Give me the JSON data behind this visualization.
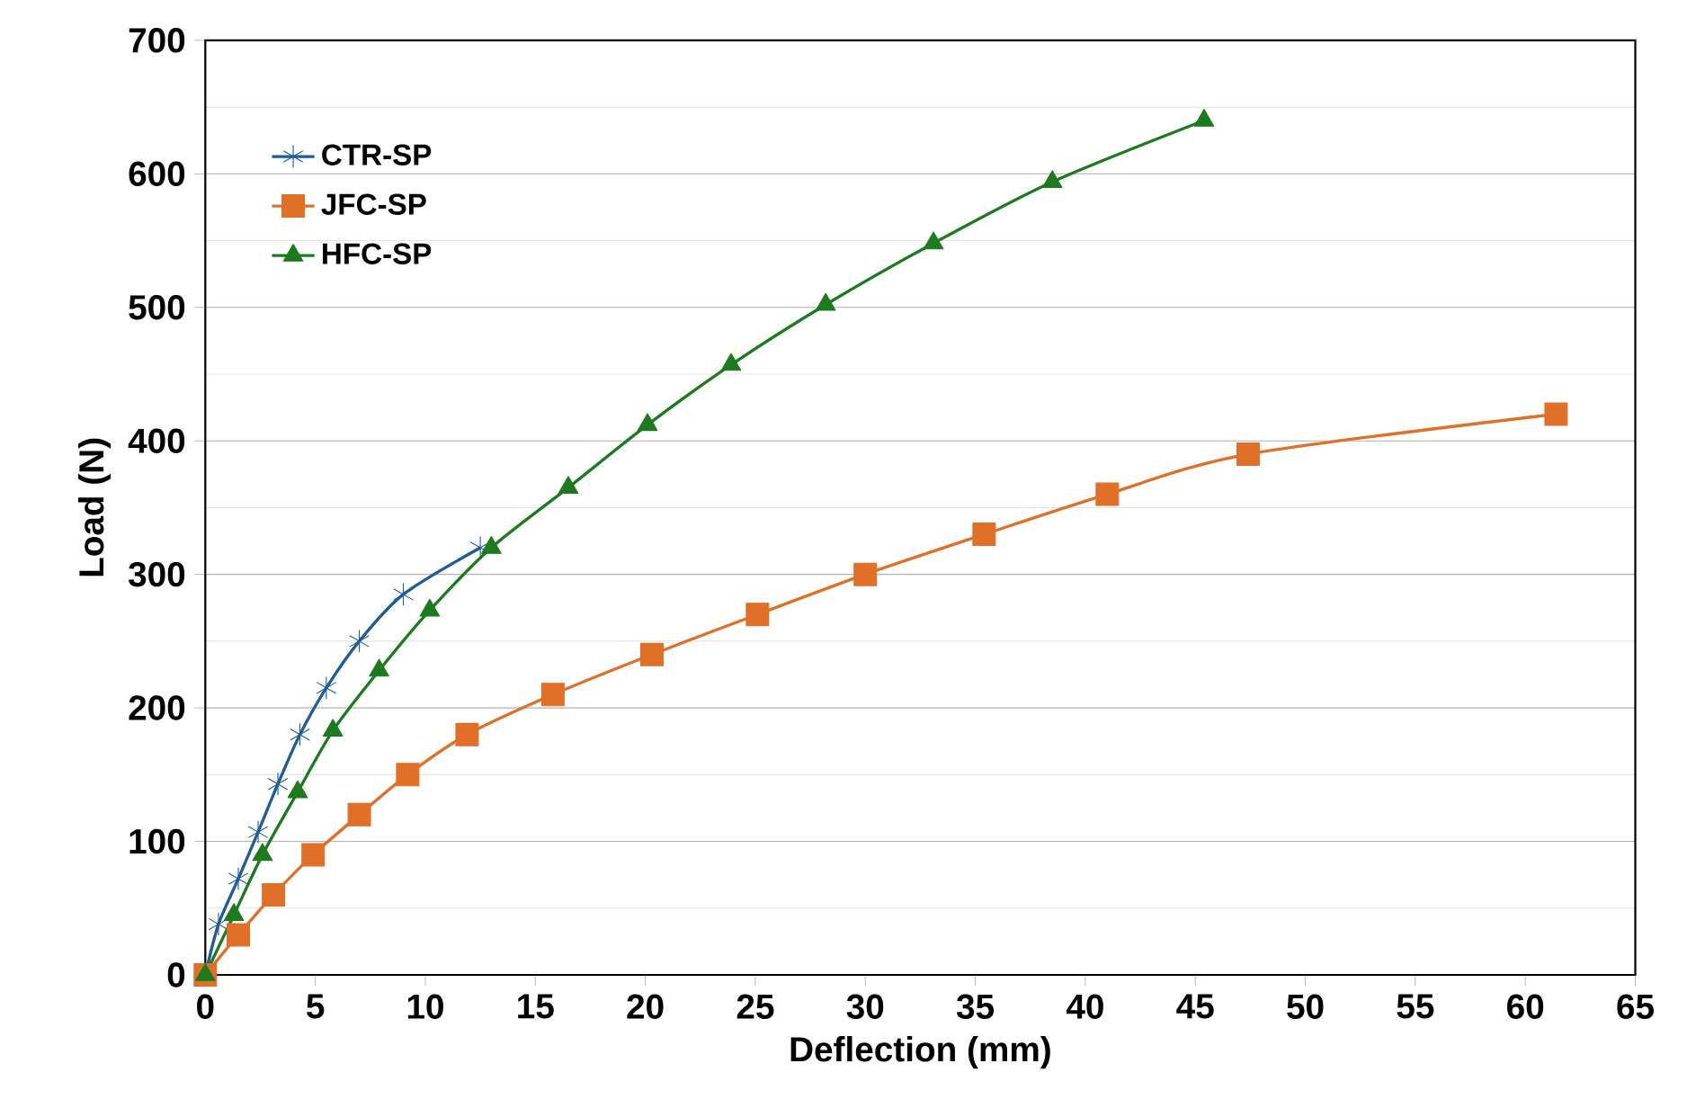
{
  "chart_data": {
    "type": "line",
    "xlabel": "Deflection (mm)",
    "ylabel": "Load (N)",
    "xlim": [
      0,
      65
    ],
    "ylim": [
      0,
      700
    ],
    "xticks": [
      0,
      5,
      10,
      15,
      20,
      25,
      30,
      35,
      40,
      45,
      50,
      55,
      60,
      65
    ],
    "yticks": [
      0,
      100,
      200,
      300,
      400,
      500,
      600,
      700
    ],
    "grid": "y",
    "legend": "top left",
    "line_style": "solid",
    "series": [
      {
        "name": "CTR-SP",
        "color": "#1f5c99",
        "marker": "cross",
        "x": [
          0,
          0.6,
          1.5,
          2.4,
          3.3,
          4.3,
          5.5,
          7,
          9,
          12.5
        ],
        "values": [
          0,
          38,
          72,
          107,
          143,
          180,
          215,
          250,
          285,
          320
        ]
      },
      {
        "name": "JFC-SP",
        "color": "#e07028",
        "marker": "square",
        "x": [
          0,
          1.5,
          3.1,
          4.9,
          7,
          9.2,
          11.9,
          15.8,
          20.3,
          25.1,
          30,
          35.4,
          41,
          47.4,
          61.4
        ],
        "values": [
          0,
          30,
          60,
          90,
          120,
          150,
          180,
          210,
          240,
          270,
          300,
          330,
          360,
          390,
          420
        ]
      },
      {
        "name": "HFC-SP",
        "color": "#1e7a1e",
        "marker": "triangle",
        "x": [
          0,
          1.3,
          2.6,
          4.2,
          5.8,
          7.9,
          10.2,
          13,
          16.5,
          20.1,
          23.9,
          28.2,
          33.1,
          38.5,
          45.4
        ],
        "values": [
          0,
          45,
          90,
          137,
          183,
          228,
          273,
          320,
          365,
          412,
          457,
          502,
          548,
          594,
          640
        ]
      }
    ]
  }
}
